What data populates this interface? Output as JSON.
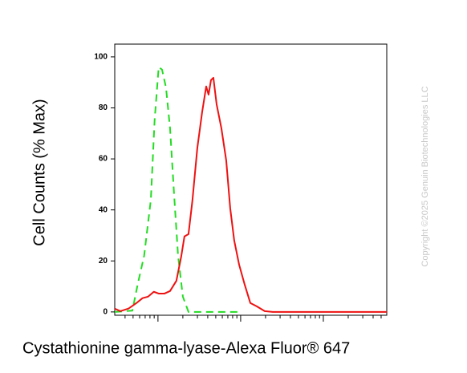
{
  "chart_data": {
    "type": "line",
    "ylabel": "Cell Counts (% Max)",
    "xlabel": "Cystathionine gamma-lyase-Alexa Fluor® 647",
    "watermark": "Copyright ©2025 Genuin Biotechnologies LLC",
    "xscale": "log",
    "xlim": [
      30,
      58500
    ],
    "xticks": [
      40,
      50,
      60,
      70,
      80,
      90,
      100,
      200,
      300,
      400,
      500,
      600,
      700,
      800,
      900,
      1000,
      2000,
      3000,
      4000,
      5000,
      6000,
      7000,
      8000,
      9000,
      10000,
      20000,
      30000,
      40000,
      50000
    ],
    "ylim": [
      -1.3,
      105
    ],
    "yticks": [
      0,
      20,
      40,
      60,
      80,
      100
    ],
    "series": [
      {
        "color": "#22dd22",
        "line_style": "dashed",
        "x": [
          30,
          49,
          57,
          68,
          82,
          91,
          102,
          112,
          125,
          140,
          156,
          175,
          200,
          234,
          300,
          1000
        ],
        "values": [
          0,
          0.5,
          11,
          22,
          44,
          75,
          96,
          95,
          88,
          72,
          47,
          22,
          6,
          0,
          0,
          0
        ]
      },
      {
        "color": "#ee1111",
        "line_style": "solid",
        "x": [
          30,
          35,
          44,
          55,
          65,
          76,
          89,
          102,
          120,
          140,
          167,
          191,
          209,
          234,
          261,
          299,
          342,
          383,
          409,
          438,
          468,
          512,
          585,
          669,
          748,
          836,
          957,
          1119,
          1309,
          1565,
          1955,
          2445,
          58500
        ],
        "values": [
          1.3,
          0.3,
          1.3,
          3.5,
          5.4,
          6,
          7.9,
          7.2,
          7.2,
          8.2,
          12.2,
          21.7,
          29.6,
          30.5,
          43.7,
          64.2,
          78.3,
          88.4,
          85.2,
          90.9,
          91.8,
          81.4,
          72,
          59.4,
          40.6,
          28,
          18.6,
          10.7,
          3.5,
          2.2,
          0.3,
          0,
          0
        ]
      }
    ]
  }
}
